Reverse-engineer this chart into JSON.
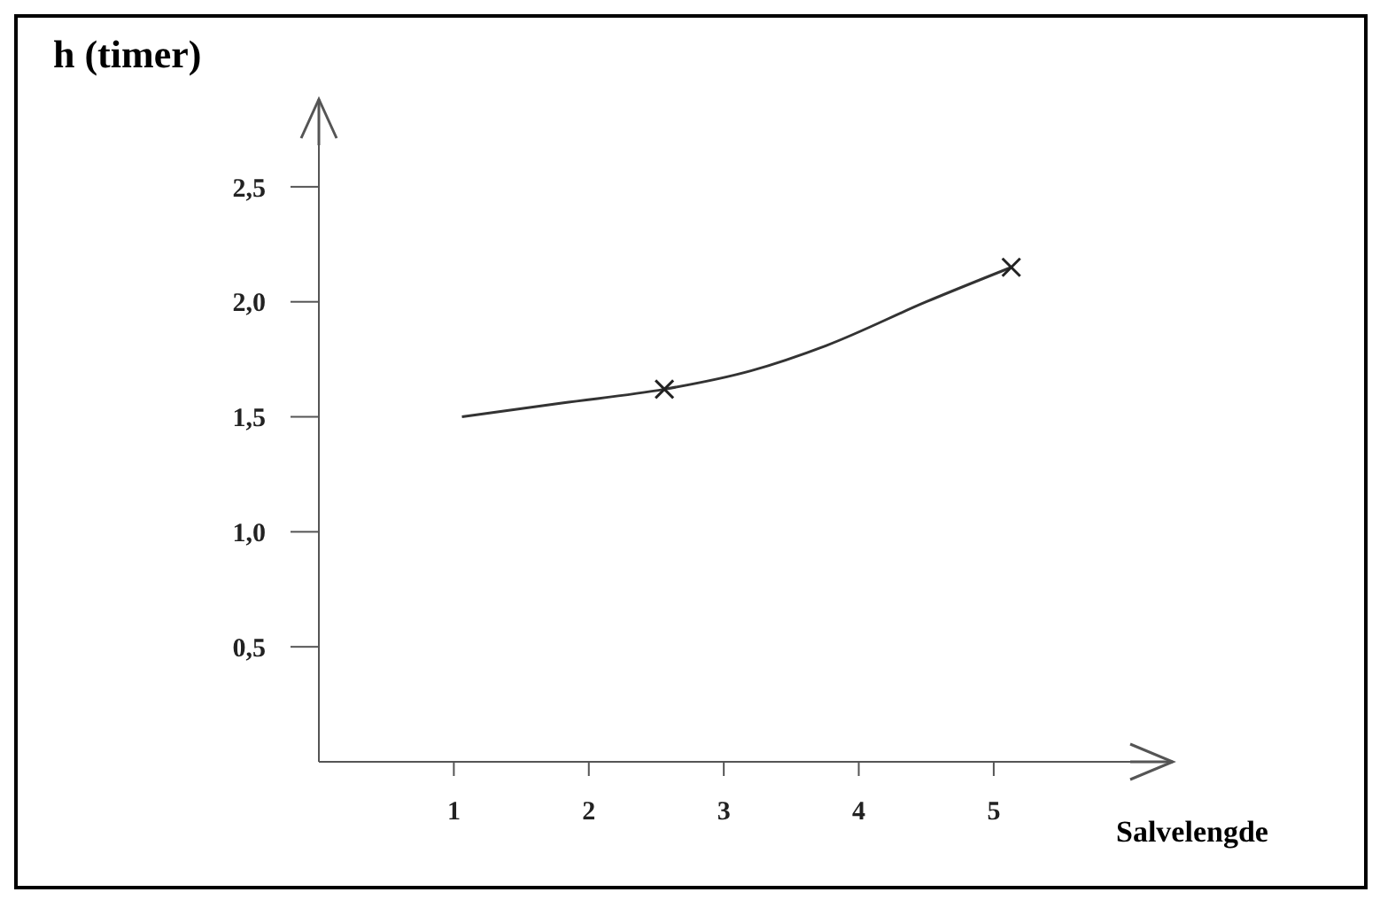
{
  "chart_data": {
    "type": "line",
    "ylabel": "h (timer)",
    "xlabel": "Salvelengde",
    "xlim": [
      0,
      6.3
    ],
    "xticks": [
      1,
      2,
      3,
      4,
      5
    ],
    "ylim": [
      0,
      2.85
    ],
    "yticks": [
      {
        "value": 0.5,
        "label": "0,5"
      },
      {
        "value": 1,
        "label": "1,0"
      },
      {
        "value": 1.5,
        "label": "1,5"
      },
      {
        "value": 2,
        "label": "2,0"
      },
      {
        "value": 2.5,
        "label": "2,5"
      }
    ],
    "grid": false,
    "series": [
      {
        "color": "#333333",
        "marker": "none",
        "x": [
          1.06,
          1.8,
          2.56,
          3.2,
          3.76,
          4.5,
          5.13
        ],
        "values": [
          1.5,
          1.56,
          1.62,
          1.7,
          1.81,
          2.0,
          2.15
        ]
      },
      {
        "type": "scatter",
        "color": "#222222",
        "marker": "cross",
        "x": [
          2.56,
          5.13
        ],
        "values": [
          1.62,
          2.15
        ]
      }
    ]
  }
}
